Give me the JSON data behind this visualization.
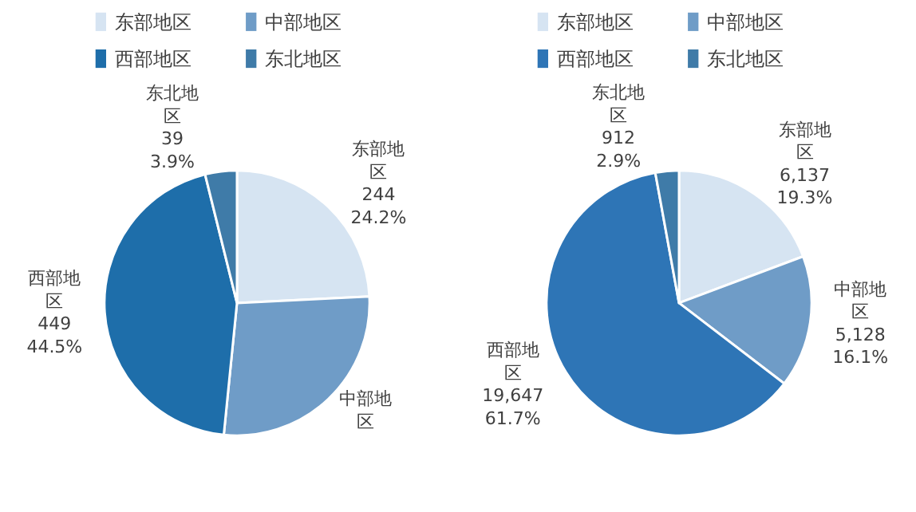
{
  "chart_data": [
    {
      "type": "pie",
      "categories": [
        "东部地区",
        "中部地区",
        "西部地区",
        "东北地区"
      ],
      "values": [
        244,
        276,
        449,
        39
      ],
      "value_labels": [
        "244\n24.2%",
        null,
        "449\n44.5%",
        "39\n3.9%"
      ],
      "colors": [
        "#d6e4f2",
        "#6f9cc7",
        "#1e6eaa",
        "#3f7ba8"
      ],
      "legend": "top"
    },
    {
      "type": "pie",
      "categories": [
        "东部地区",
        "中部地区",
        "西部地区",
        "东北地区"
      ],
      "values": [
        6137,
        5128,
        19647,
        912
      ],
      "value_labels": [
        "6,137\n19.3%",
        "5,128\n16.1%",
        "19,647\n61.7%",
        "912\n2.9%"
      ],
      "colors": [
        "#d6e4f2",
        "#6f9cc7",
        "#2e75b6",
        "#3f7ba8"
      ],
      "legend": "top"
    }
  ]
}
